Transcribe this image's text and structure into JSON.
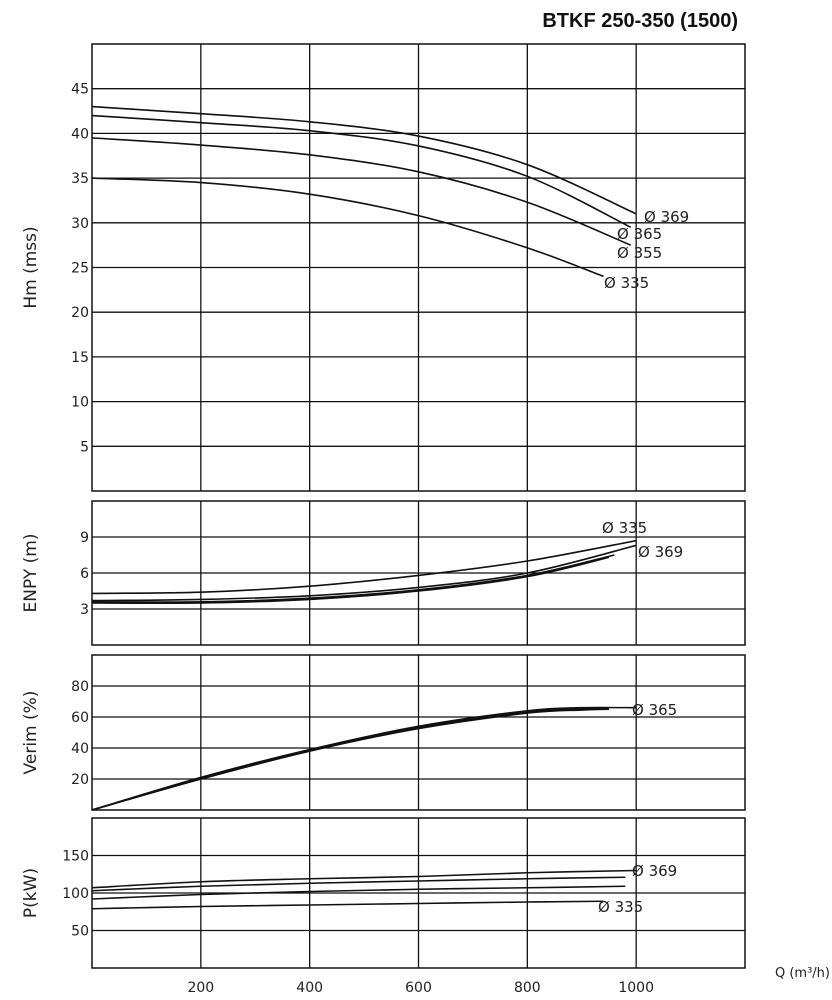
{
  "title": "BTKF 250-350 (1500)",
  "xlabel": "Q (m³/h)",
  "x_ticks": [
    "200",
    "400",
    "600",
    "800",
    "1000"
  ],
  "chart_data": [
    {
      "type": "line",
      "ylabel": "Hm (mss)",
      "xlim": [
        0,
        1200
      ],
      "ylim": [
        0,
        50
      ],
      "y_ticks": [
        5,
        10,
        15,
        20,
        25,
        30,
        35,
        40,
        45
      ],
      "series": [
        {
          "name": "Ø 369",
          "x": [
            0,
            200,
            400,
            600,
            800,
            1000
          ],
          "y": [
            43,
            42.2,
            41.3,
            39.7,
            36.5,
            31
          ]
        },
        {
          "name": "Ø 365",
          "x": [
            0,
            200,
            400,
            600,
            800,
            990
          ],
          "y": [
            42,
            41.2,
            40.3,
            38.6,
            35.2,
            29.5
          ]
        },
        {
          "name": "Ø 355",
          "x": [
            0,
            200,
            400,
            600,
            800,
            990
          ],
          "y": [
            39.5,
            38.7,
            37.6,
            35.7,
            32.3,
            27.5
          ]
        },
        {
          "name": "Ø 335",
          "x": [
            0,
            200,
            400,
            600,
            800,
            940
          ],
          "y": [
            35,
            34.5,
            33.2,
            30.8,
            27.2,
            24
          ]
        }
      ]
    },
    {
      "type": "line",
      "ylabel": "ENPY (m)",
      "xlim": [
        0,
        1200
      ],
      "ylim": [
        0,
        12
      ],
      "y_ticks": [
        3,
        6,
        9
      ],
      "series": [
        {
          "name": "Ø 335",
          "x": [
            0,
            200,
            400,
            600,
            800,
            1000
          ],
          "y": [
            4.3,
            4.4,
            4.9,
            5.8,
            7.0,
            8.7
          ]
        },
        {
          "name": "Ø 369",
          "x": [
            0,
            200,
            400,
            600,
            800,
            1000
          ],
          "y": [
            3.7,
            3.8,
            4.1,
            4.8,
            6.0,
            8.3
          ]
        },
        {
          "name": "",
          "x": [
            0,
            200,
            400,
            600,
            800,
            960
          ],
          "y": [
            3.6,
            3.6,
            3.9,
            4.6,
            5.8,
            7.5
          ]
        },
        {
          "name": "",
          "x": [
            0,
            200,
            400,
            600,
            800,
            950
          ],
          "y": [
            3.5,
            3.5,
            3.8,
            4.5,
            5.7,
            7.3
          ]
        }
      ]
    },
    {
      "type": "line",
      "ylabel": "Verim (%)",
      "xlim": [
        0,
        1200
      ],
      "ylim": [
        0,
        100
      ],
      "y_ticks": [
        20,
        40,
        60,
        80
      ],
      "series": [
        {
          "name": "Ø 365",
          "x": [
            0,
            200,
            400,
            600,
            800,
            900,
            1000
          ],
          "y": [
            0,
            21,
            39,
            54,
            64,
            66,
            66
          ]
        },
        {
          "name": "",
          "x": [
            0,
            200,
            400,
            600,
            800,
            900,
            950
          ],
          "y": [
            0,
            20,
            38,
            53,
            63,
            65,
            65
          ]
        },
        {
          "name": "",
          "x": [
            0,
            200,
            400,
            600,
            800,
            900,
            950
          ],
          "y": [
            0,
            20.5,
            38.5,
            53.5,
            63.5,
            65.5,
            65.5
          ]
        },
        {
          "name": "",
          "x": [
            0,
            200,
            400,
            600,
            800,
            900,
            950
          ],
          "y": [
            0,
            20,
            38,
            52.5,
            62.5,
            64.5,
            65
          ]
        }
      ]
    },
    {
      "type": "line",
      "ylabel": "P(kW)",
      "xlim": [
        0,
        1200
      ],
      "ylim": [
        0,
        200
      ],
      "y_ticks": [
        50,
        100,
        150
      ],
      "series": [
        {
          "name": "Ø 369",
          "x": [
            0,
            200,
            400,
            600,
            800,
            1000
          ],
          "y": [
            107,
            115,
            119,
            122,
            127,
            130
          ]
        },
        {
          "name": "",
          "x": [
            0,
            200,
            400,
            600,
            800,
            980
          ],
          "y": [
            103,
            109,
            113,
            116,
            119,
            121
          ]
        },
        {
          "name": "",
          "x": [
            0,
            200,
            400,
            600,
            800,
            980
          ],
          "y": [
            92,
            98,
            102,
            105,
            107,
            109
          ]
        },
        {
          "name": "Ø 335",
          "x": [
            0,
            200,
            400,
            600,
            800,
            940
          ],
          "y": [
            79,
            82,
            84,
            86,
            88,
            89
          ]
        }
      ]
    }
  ]
}
